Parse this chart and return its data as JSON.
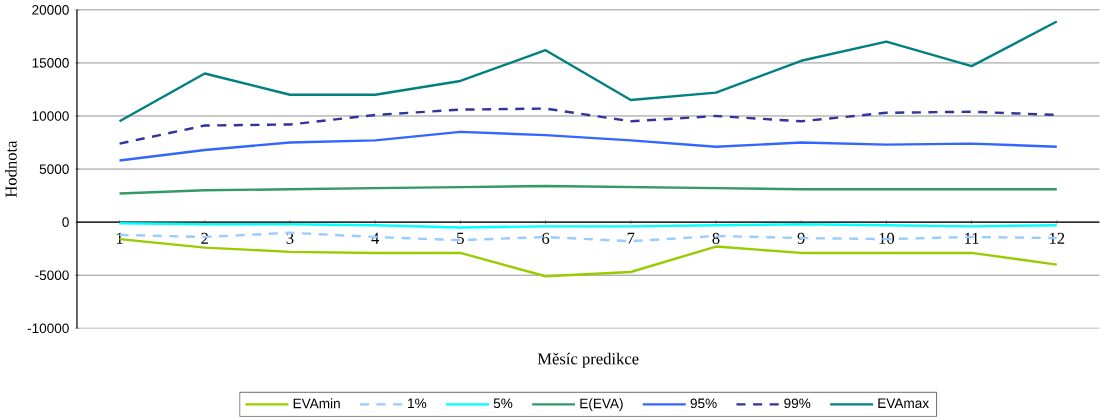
{
  "chart_data": {
    "type": "line",
    "xlabel": "Měsíc predikce",
    "ylabel": "Hodnota",
    "categories": [
      "1",
      "2",
      "3",
      "4",
      "5",
      "6",
      "7",
      "8",
      "9",
      "10",
      "11",
      "12"
    ],
    "ylim": [
      -10000,
      20000
    ],
    "yticks": [
      -10000,
      -5000,
      0,
      5000,
      10000,
      15000,
      20000
    ],
    "grid": "y",
    "legend": "bottom",
    "series": [
      {
        "name": "EVAmin",
        "color": "#99cc00",
        "line_style": "solid",
        "values": [
          -1600,
          -2400,
          -2800,
          -2900,
          -2900,
          -5100,
          -4700,
          -2300,
          -2900,
          -2900,
          -2900,
          -4000
        ]
      },
      {
        "name": "1%",
        "color": "#99ccff",
        "line_style": "dashed",
        "values": [
          -1200,
          -1400,
          -1000,
          -1400,
          -1700,
          -1400,
          -1800,
          -1300,
          -1500,
          -1600,
          -1400,
          -1500
        ]
      },
      {
        "name": "5%",
        "color": "#00ffff",
        "line_style": "solid",
        "values": [
          -100,
          -200,
          -200,
          -300,
          -500,
          -400,
          -400,
          -300,
          -200,
          -300,
          -400,
          -300
        ]
      },
      {
        "name": "E(EVA)",
        "color": "#339966",
        "line_style": "solid",
        "values": [
          2700,
          3000,
          3100,
          3200,
          3300,
          3400,
          3300,
          3200,
          3100,
          3100,
          3100,
          3100
        ]
      },
      {
        "name": "95%",
        "color": "#3366ff",
        "line_style": "solid",
        "values": [
          5800,
          6800,
          7500,
          7700,
          8500,
          8200,
          7700,
          7100,
          7500,
          7300,
          7400,
          7100
        ]
      },
      {
        "name": "99%",
        "color": "#333399",
        "line_style": "dashed",
        "values": [
          7400,
          9100,
          9200,
          10100,
          10600,
          10700,
          9500,
          10000,
          9500,
          10300,
          10400,
          10100
        ]
      },
      {
        "name": "EVAmax",
        "color": "#008080",
        "line_style": "solid",
        "values": [
          9500,
          14000,
          12000,
          12000,
          13300,
          16200,
          11500,
          12200,
          15200,
          17000,
          14700,
          18900
        ]
      }
    ]
  }
}
